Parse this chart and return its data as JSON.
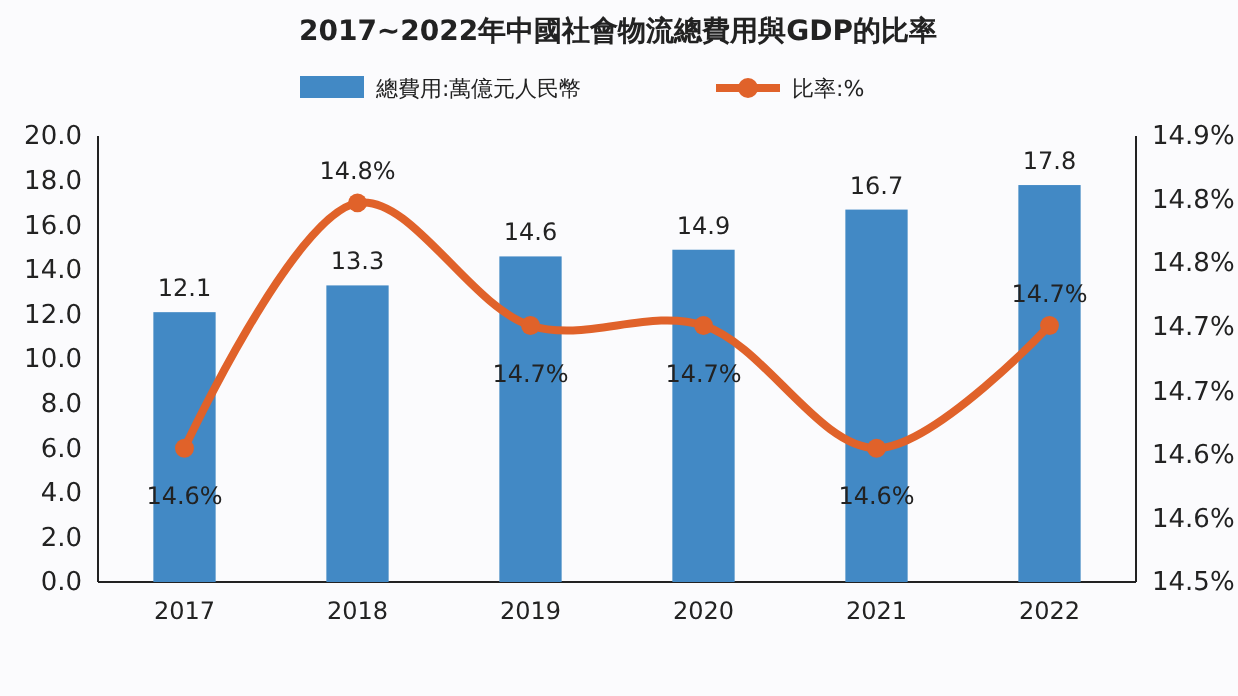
{
  "chart_data": {
    "type": "bar",
    "title": "2017~2022年中國社會物流總費用與GDP的比率",
    "categories": [
      "2017",
      "2018",
      "2019",
      "2020",
      "2021",
      "2022"
    ],
    "series": [
      {
        "name": "總費用:萬億元人民幣",
        "color": "#4289c5",
        "values": [
          12.1,
          13.3,
          14.6,
          14.9,
          16.7,
          17.8
        ],
        "value_labels": [
          "12.1",
          "13.3",
          "14.6",
          "14.9",
          "16.7",
          "17.8"
        ]
      },
      {
        "name": "比率:%",
        "type": "line",
        "axis": "y2",
        "color": "#e0622a",
        "marker": "circle",
        "values": [
          14.62,
          14.84,
          14.73,
          14.73,
          14.62,
          14.73
        ],
        "value_labels": [
          "14.6%",
          "14.8%",
          "14.7%",
          "14.7%",
          "14.6%",
          "14.7%"
        ]
      }
    ],
    "ylim": [
      0,
      20
    ],
    "yticks": [
      {
        "value": 0,
        "label": "0.0"
      },
      {
        "value": 2,
        "label": "2.0"
      },
      {
        "value": 4,
        "label": "4.0"
      },
      {
        "value": 6,
        "label": "6.0"
      },
      {
        "value": 8,
        "label": "8.0"
      },
      {
        "value": 10,
        "label": "10.0"
      },
      {
        "value": 12,
        "label": "12.0"
      },
      {
        "value": 14,
        "label": "14.0"
      },
      {
        "value": 16,
        "label": "16.0"
      },
      {
        "value": 18,
        "label": "18.0"
      },
      {
        "value": 20,
        "label": "20.0"
      }
    ],
    "y2lim": [
      14.5,
      14.9
    ],
    "y2ticks": [
      {
        "value": 14.5,
        "label": "14.5%"
      },
      {
        "value": 14.557,
        "label": "14.6%"
      },
      {
        "value": 14.614,
        "label": "14.6%"
      },
      {
        "value": 14.671,
        "label": "14.7%"
      },
      {
        "value": 14.729,
        "label": "14.7%"
      },
      {
        "value": 14.786,
        "label": "14.8%"
      },
      {
        "value": 14.843,
        "label": "14.8%"
      },
      {
        "value": 14.9,
        "label": "14.9%"
      }
    ],
    "legend": "top",
    "grid": false
  }
}
